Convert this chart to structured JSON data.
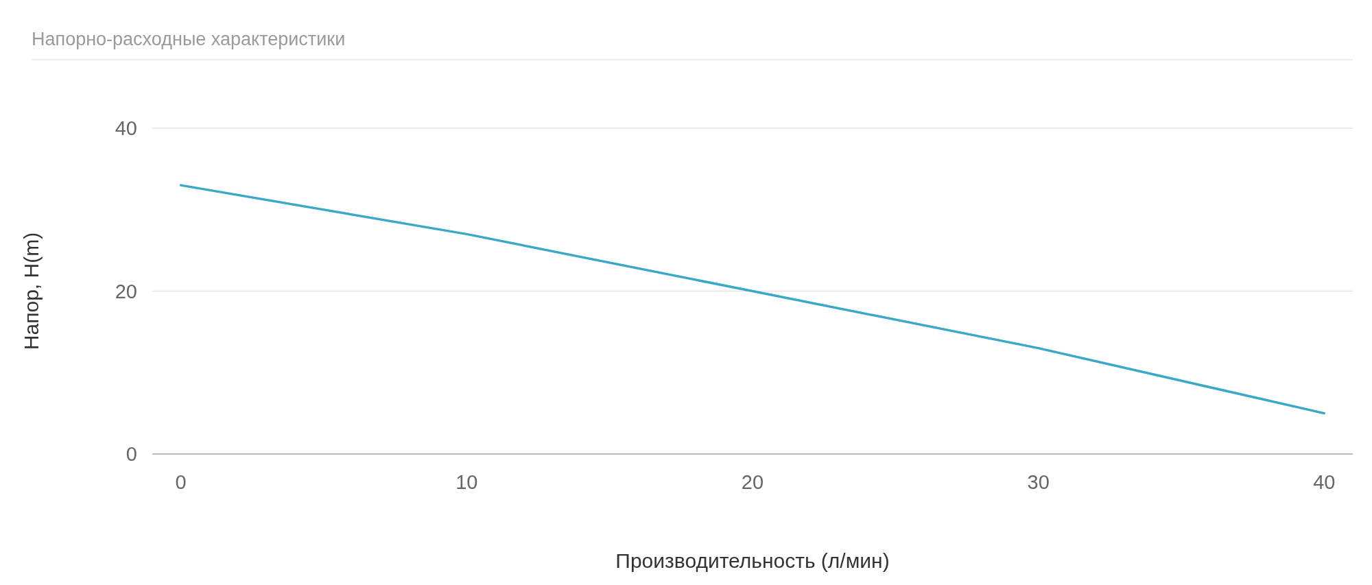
{
  "chart_data": {
    "type": "line",
    "title": "Напорно-расходные характеристики",
    "xlabel": "Производительность (л/мин)",
    "ylabel": "Напор, H(m)",
    "x": [
      0,
      10,
      20,
      30,
      40
    ],
    "series": [
      {
        "color": "#3aa9c8",
        "values": [
          33,
          27,
          20,
          13,
          5
        ]
      }
    ],
    "xlim": [
      -1,
      41
    ],
    "xticks": [
      0,
      10,
      20,
      30,
      40
    ],
    "ylim": [
      0,
      40
    ],
    "yticks": [
      0,
      20,
      40
    ],
    "grid": "y",
    "marker": "none",
    "line_style": "solid"
  }
}
